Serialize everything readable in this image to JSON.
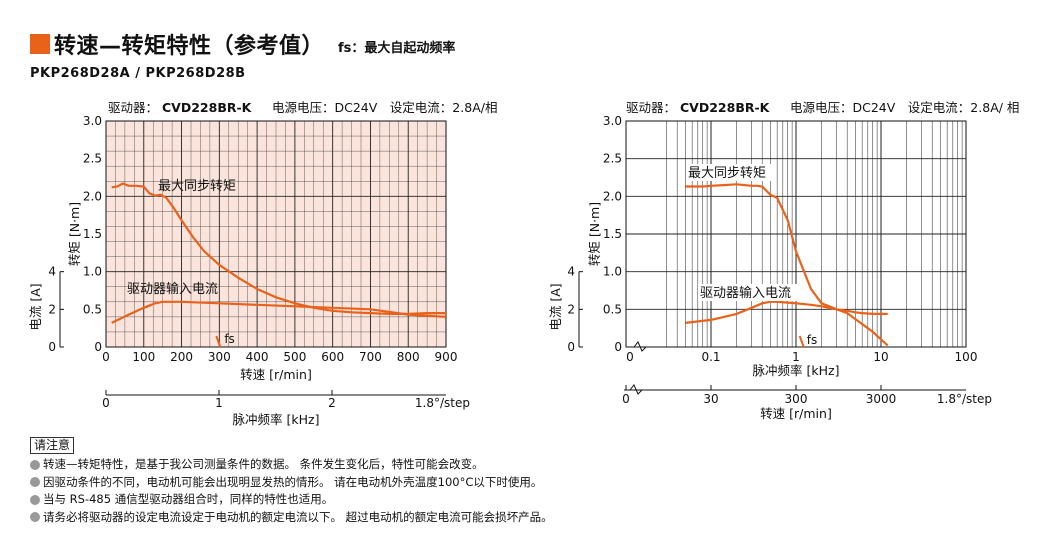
{
  "header": {
    "title": "转速—转矩特性（参考值）",
    "subtitle": "fs：最大自起动频率",
    "model": "PKP268D28A / PKP268D28B"
  },
  "notes": {
    "title": "请注意",
    "items": [
      "转速—转矩特性，是基于我公司测量条件的数据。 条件发生变化后，特性可能会改变。",
      "因驱动条件的不同，电动机可能会出现明显发热的情形。 请在电动机外壳温度100°C以下时使用。",
      "当与 RS-485 通信型驱动器组合时，同样的特性也适用。",
      "请务必将驱动器的设定电流设定于电动机的额定电流以下。 超过电动机的额定电流可能会损坏产品。"
    ]
  },
  "colors": {
    "curve": "#e8621a",
    "plot_bg": "#fbe4dc",
    "grid": "#222222",
    "title_mark": "#e8621a"
  },
  "chart_data": [
    {
      "type": "line",
      "header_label": "驱动器：",
      "header_driver": "CVD228BR-K",
      "header_rest": "电源电压：DC24V　设定电流：2.8A/相",
      "xlabel": "转速 [r/min]",
      "xlabel2": "脉冲频率 [kHz]",
      "ylabel": "转矩 [N·m]",
      "ylabel2": "电流 [A]",
      "xlim": [
        0,
        900
      ],
      "ylim": [
        0,
        3.0
      ],
      "x_scale": "linear",
      "x_ticks": [
        "0",
        "100",
        "200",
        "300",
        "400",
        "500",
        "600",
        "700",
        "800",
        "900"
      ],
      "y_ticks": [
        "0",
        "0.5",
        "1.0",
        "1.5",
        "2.0",
        "2.5",
        "3.0"
      ],
      "current_ticks": [
        "0",
        "2",
        "4"
      ],
      "pulse_ticks": [
        "0",
        "1",
        "2"
      ],
      "pulse_note": "1.8°/step",
      "fs_label": "fs",
      "series": [
        {
          "name": "最大同步转矩",
          "x": [
            15,
            30,
            45,
            60,
            80,
            100,
            115,
            130,
            145,
            160,
            180,
            200,
            230,
            260,
            300,
            350,
            400,
            450,
            500,
            550,
            600,
            650,
            700,
            750,
            800,
            850,
            900
          ],
          "y": [
            2.12,
            2.13,
            2.17,
            2.14,
            2.14,
            2.13,
            2.04,
            2.01,
            2.02,
            1.98,
            1.84,
            1.68,
            1.46,
            1.27,
            1.09,
            0.92,
            0.77,
            0.66,
            0.58,
            0.52,
            0.48,
            0.46,
            0.45,
            0.44,
            0.44,
            0.45,
            0.45
          ]
        },
        {
          "name": "驱动器输入电流",
          "x": [
            15,
            60,
            100,
            130,
            150,
            200,
            300,
            400,
            500,
            600,
            700,
            800,
            900
          ],
          "y": [
            0.32,
            0.43,
            0.52,
            0.58,
            0.6,
            0.6,
            0.58,
            0.56,
            0.54,
            0.52,
            0.5,
            0.43,
            0.4
          ]
        }
      ]
    },
    {
      "type": "line",
      "header_label": "驱动器：",
      "header_driver": "CVD228BR-K",
      "header_rest": "电源电压：DC24V　设定电流：2.8A/ 相",
      "xlabel": "脉冲频率 [kHz]",
      "xlabel2": "转速 [r/min]",
      "ylabel": "转矩 [N·m]",
      "ylabel2": "电流 [A]",
      "xlim": [
        0.01,
        100
      ],
      "ylim": [
        0,
        3.0
      ],
      "x_scale": "log",
      "x_ticks": [
        "0",
        "0.1",
        "1",
        "10",
        "100"
      ],
      "y_ticks": [
        "0",
        "0.5",
        "1.0",
        "1.5",
        "2.0",
        "2.5",
        "3.0"
      ],
      "current_ticks": [
        "0",
        "2",
        "4"
      ],
      "speed_ticks": [
        "0",
        "30",
        "300",
        "3000"
      ],
      "pulse_note": "1.8°/step",
      "fs_label": "fs",
      "series": [
        {
          "name": "最大同步转矩",
          "x": [
            0.05,
            0.08,
            0.1,
            0.15,
            0.2,
            0.3,
            0.35,
            0.4,
            0.5,
            0.6,
            0.8,
            1,
            1.5,
            2,
            3,
            4,
            5,
            6,
            8,
            10,
            12
          ],
          "y": [
            2.13,
            2.13,
            2.14,
            2.15,
            2.16,
            2.14,
            2.14,
            2.13,
            2.02,
            1.98,
            1.68,
            1.27,
            0.77,
            0.58,
            0.5,
            0.48,
            0.46,
            0.45,
            0.44,
            0.44,
            0.44
          ]
        },
        {
          "name": "驱动器输入电流",
          "x": [
            0.05,
            0.1,
            0.2,
            0.3,
            0.4,
            0.5,
            0.6,
            0.8,
            1,
            1.5,
            2,
            3,
            4,
            5,
            8,
            12
          ],
          "y": [
            0.32,
            0.36,
            0.44,
            0.52,
            0.58,
            0.6,
            0.6,
            0.59,
            0.58,
            0.56,
            0.54,
            0.5,
            0.45,
            0.37,
            0.2,
            0.02
          ]
        }
      ]
    }
  ]
}
